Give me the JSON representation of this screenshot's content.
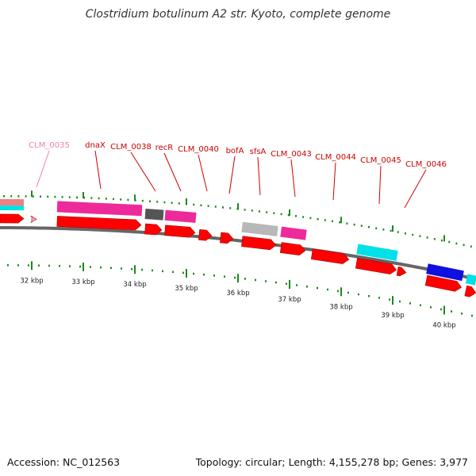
{
  "title": "Clostridium botulinum A2 str. Kyoto, complete genome",
  "footer": {
    "accession": "Accession: NC_012563",
    "stats": "Topology: circular; Length: 4,155,278 bp; Genes: 3,977"
  },
  "scale": {
    "ticks": [
      {
        "kb": 32,
        "label": "32 kbp"
      },
      {
        "kb": 33,
        "label": "33 kbp"
      },
      {
        "kb": 34,
        "label": "34 kbp"
      },
      {
        "kb": 35,
        "label": "35 kbp"
      },
      {
        "kb": 36,
        "label": "36 kbp"
      },
      {
        "kb": 37,
        "label": "37 kbp"
      },
      {
        "kb": 38,
        "label": "38 kbp"
      },
      {
        "kb": 39,
        "label": "39 kbp"
      },
      {
        "kb": 40,
        "label": "40 kbp"
      }
    ]
  },
  "gene_labels": [
    {
      "text": "CLM_0035",
      "color": "#f080a8"
    },
    {
      "text": "dnaX",
      "color": "#cc0000"
    },
    {
      "text": "CLM_0038",
      "color": "#cc0000"
    },
    {
      "text": "recR",
      "color": "#cc0000"
    },
    {
      "text": "CLM_0040",
      "color": "#cc0000"
    },
    {
      "text": "bofA",
      "color": "#cc0000"
    },
    {
      "text": "sfsA",
      "color": "#cc0000"
    },
    {
      "text": "CLM_0043",
      "color": "#cc0000"
    },
    {
      "text": "CLM_0044",
      "color": "#cc0000"
    },
    {
      "text": "CLM_0045",
      "color": "#cc0000"
    },
    {
      "text": "CLM_0046",
      "color": "#cc0000"
    }
  ],
  "colors": {
    "cds": "#ff0000",
    "pink": "#ee2a9a",
    "gray": "#999999",
    "darkgray": "#555555",
    "cyan": "#00e0e8",
    "blue": "#1010e0",
    "salmon": "#f08080",
    "lightpink": "#f8a8c8",
    "tick": "#1a8a1a",
    "backbone": "#666666"
  }
}
